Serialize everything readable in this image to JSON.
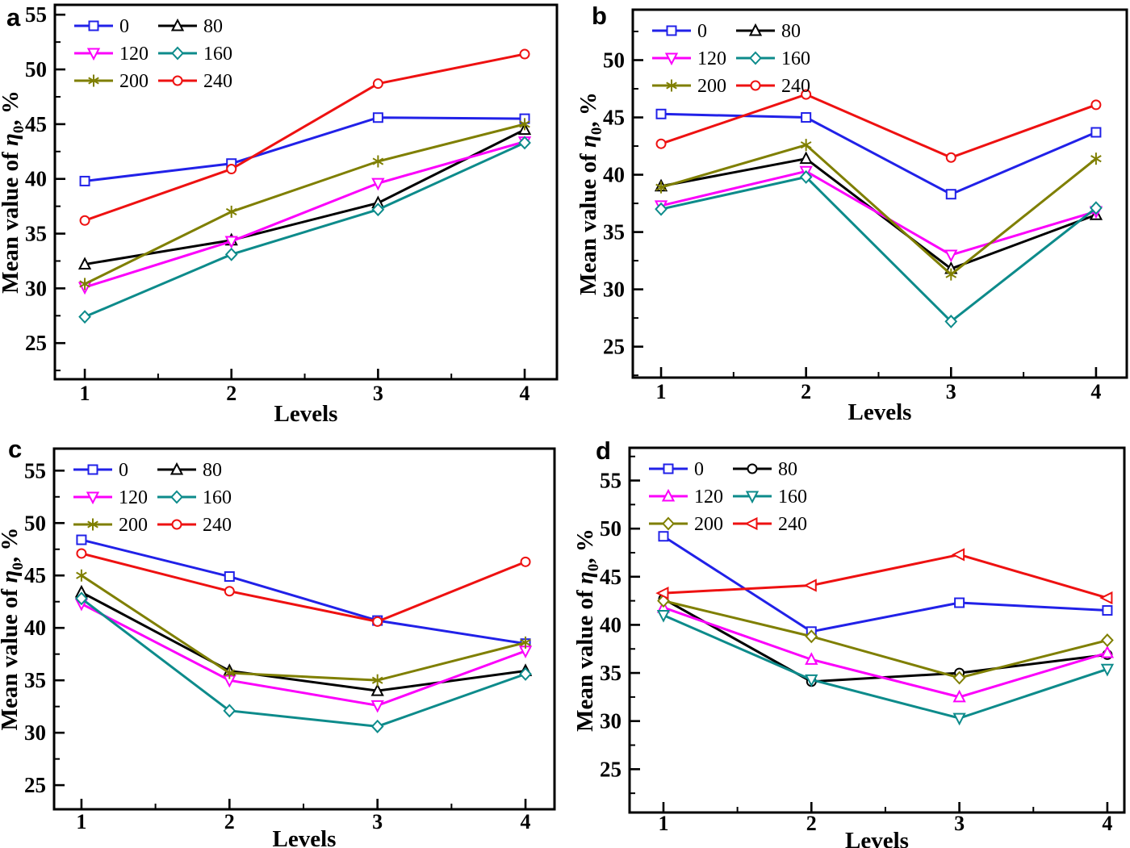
{
  "figure_title": "",
  "panel_letters": [
    "a",
    "b",
    "c",
    "d"
  ],
  "axis": {
    "xlabel": "Levels",
    "ylabel_text": "Mean value of η0, %",
    "ylabel_parts": {
      "prefix": "Mean value of ",
      "symbol": "η",
      "sub": "0",
      "suffix": ", %"
    }
  },
  "colors": {
    "series_0": "#2121e8",
    "series_80": "#000000",
    "series_120": "#fb00fb",
    "series_160": "#0d8b8b",
    "series_200": "#7f7f00",
    "series_240": "#ee1111",
    "axis": "#000000",
    "background": "#ffffff"
  },
  "chart_data": [
    {
      "panel": "a",
      "letter": "a",
      "type": "line",
      "xlabel": "Levels",
      "ylabel": "Mean value of η0, %",
      "x": [
        1,
        2,
        3,
        4
      ],
      "xtick_labels": [
        "1",
        "2",
        "3",
        "4"
      ],
      "yticks": [
        25,
        30,
        35,
        40,
        45,
        50,
        55
      ],
      "ylim": [
        21.7,
        55.9
      ],
      "legend_position": "top-left",
      "legend_labels": [
        "0",
        "80",
        "120",
        "160",
        "200",
        "240"
      ],
      "series": [
        {
          "name": "0",
          "color": "#2121e8",
          "marker": "square",
          "values": [
            39.8,
            41.4,
            45.6,
            45.5
          ]
        },
        {
          "name": "80",
          "color": "#000000",
          "marker": "triangle-up",
          "values": [
            32.2,
            34.4,
            37.8,
            44.5
          ]
        },
        {
          "name": "120",
          "color": "#fb00fb",
          "marker": "triangle-down",
          "values": [
            30.1,
            34.3,
            39.6,
            43.4
          ]
        },
        {
          "name": "160",
          "color": "#0d8b8b",
          "marker": "diamond",
          "values": [
            27.4,
            33.1,
            37.2,
            43.3
          ]
        },
        {
          "name": "200",
          "color": "#7f7f00",
          "marker": "asterisk",
          "values": [
            30.4,
            37.0,
            41.6,
            45.0
          ]
        },
        {
          "name": "240",
          "color": "#ee1111",
          "marker": "circle",
          "values": [
            36.2,
            40.9,
            48.7,
            51.4
          ]
        }
      ]
    },
    {
      "panel": "b",
      "letter": "b",
      "type": "line",
      "xlabel": "Levels",
      "ylabel": "Mean value of η0, %",
      "x": [
        1,
        2,
        3,
        4
      ],
      "xtick_labels": [
        "1",
        "2",
        "3",
        "4"
      ],
      "yticks": [
        25,
        30,
        35,
        40,
        45,
        50
      ],
      "ylim": [
        22.3,
        54.4
      ],
      "legend_position": "top-left",
      "legend_labels": [
        "0",
        "80",
        "120",
        "160",
        "200",
        "240"
      ],
      "series": [
        {
          "name": "0",
          "color": "#2121e8",
          "marker": "square",
          "values": [
            45.3,
            45.0,
            38.3,
            43.7
          ]
        },
        {
          "name": "80",
          "color": "#000000",
          "marker": "triangle-up",
          "values": [
            39.0,
            41.4,
            31.8,
            36.5
          ]
        },
        {
          "name": "120",
          "color": "#fb00fb",
          "marker": "triangle-down",
          "values": [
            37.3,
            40.3,
            33.0,
            36.8
          ]
        },
        {
          "name": "160",
          "color": "#0d8b8b",
          "marker": "diamond",
          "values": [
            37.0,
            39.8,
            27.2,
            37.1
          ]
        },
        {
          "name": "200",
          "color": "#7f7f00",
          "marker": "asterisk",
          "values": [
            38.9,
            42.6,
            31.3,
            41.4
          ]
        },
        {
          "name": "240",
          "color": "#ee1111",
          "marker": "circle",
          "values": [
            42.7,
            47.0,
            41.5,
            46.1
          ]
        }
      ]
    },
    {
      "panel": "c",
      "letter": "c",
      "type": "line",
      "xlabel": "Levels",
      "ylabel": "Mean value of η0, %",
      "x": [
        1,
        2,
        3,
        4
      ],
      "xtick_labels": [
        "1",
        "2",
        "3",
        "4"
      ],
      "yticks": [
        25,
        30,
        35,
        40,
        45,
        50,
        55
      ],
      "ylim": [
        22.7,
        57.1
      ],
      "legend_position": "top-left",
      "legend_labels": [
        "0",
        "80",
        "120",
        "160",
        "200",
        "240"
      ],
      "series": [
        {
          "name": "0",
          "color": "#2121e8",
          "marker": "square",
          "values": [
            48.4,
            44.9,
            40.7,
            38.5
          ]
        },
        {
          "name": "80",
          "color": "#000000",
          "marker": "triangle-up",
          "values": [
            43.4,
            35.9,
            34.0,
            35.9
          ]
        },
        {
          "name": "120",
          "color": "#fb00fb",
          "marker": "triangle-down",
          "values": [
            42.3,
            35.0,
            32.6,
            37.8
          ]
        },
        {
          "name": "160",
          "color": "#0d8b8b",
          "marker": "diamond",
          "values": [
            42.8,
            32.1,
            30.6,
            35.6
          ]
        },
        {
          "name": "200",
          "color": "#7f7f00",
          "marker": "asterisk",
          "values": [
            45.0,
            35.7,
            35.0,
            38.6
          ]
        },
        {
          "name": "240",
          "color": "#ee1111",
          "marker": "circle",
          "values": [
            47.1,
            43.5,
            40.6,
            46.3
          ]
        }
      ]
    },
    {
      "panel": "d",
      "letter": "d",
      "type": "line",
      "xlabel": "Levels",
      "ylabel": "Mean value of η0, %",
      "x": [
        1,
        2,
        3,
        4
      ],
      "xtick_labels": [
        "1",
        "2",
        "3",
        "4"
      ],
      "yticks": [
        25,
        30,
        35,
        40,
        45,
        50,
        55
      ],
      "ylim": [
        20.5,
        58.4
      ],
      "legend_position": "top-left",
      "legend_labels": [
        "0",
        "80",
        "120",
        "160",
        "200",
        "240"
      ],
      "series": [
        {
          "name": "0",
          "color": "#2121e8",
          "marker": "square",
          "values": [
            49.2,
            39.3,
            42.3,
            41.5
          ]
        },
        {
          "name": "80",
          "color": "#000000",
          "marker": "circle",
          "values": [
            42.7,
            34.1,
            35.0,
            36.9
          ]
        },
        {
          "name": "120",
          "color": "#fb00fb",
          "marker": "triangle-up",
          "values": [
            41.8,
            36.4,
            32.5,
            37.1
          ]
        },
        {
          "name": "160",
          "color": "#0d8b8b",
          "marker": "triangle-down",
          "values": [
            41.0,
            34.3,
            30.3,
            35.4
          ]
        },
        {
          "name": "200",
          "color": "#7f7f00",
          "marker": "diamond",
          "values": [
            42.5,
            38.8,
            34.5,
            38.4
          ]
        },
        {
          "name": "240",
          "color": "#ee1111",
          "marker": "triangle-left",
          "values": [
            43.3,
            44.1,
            47.3,
            42.8
          ]
        }
      ]
    }
  ]
}
